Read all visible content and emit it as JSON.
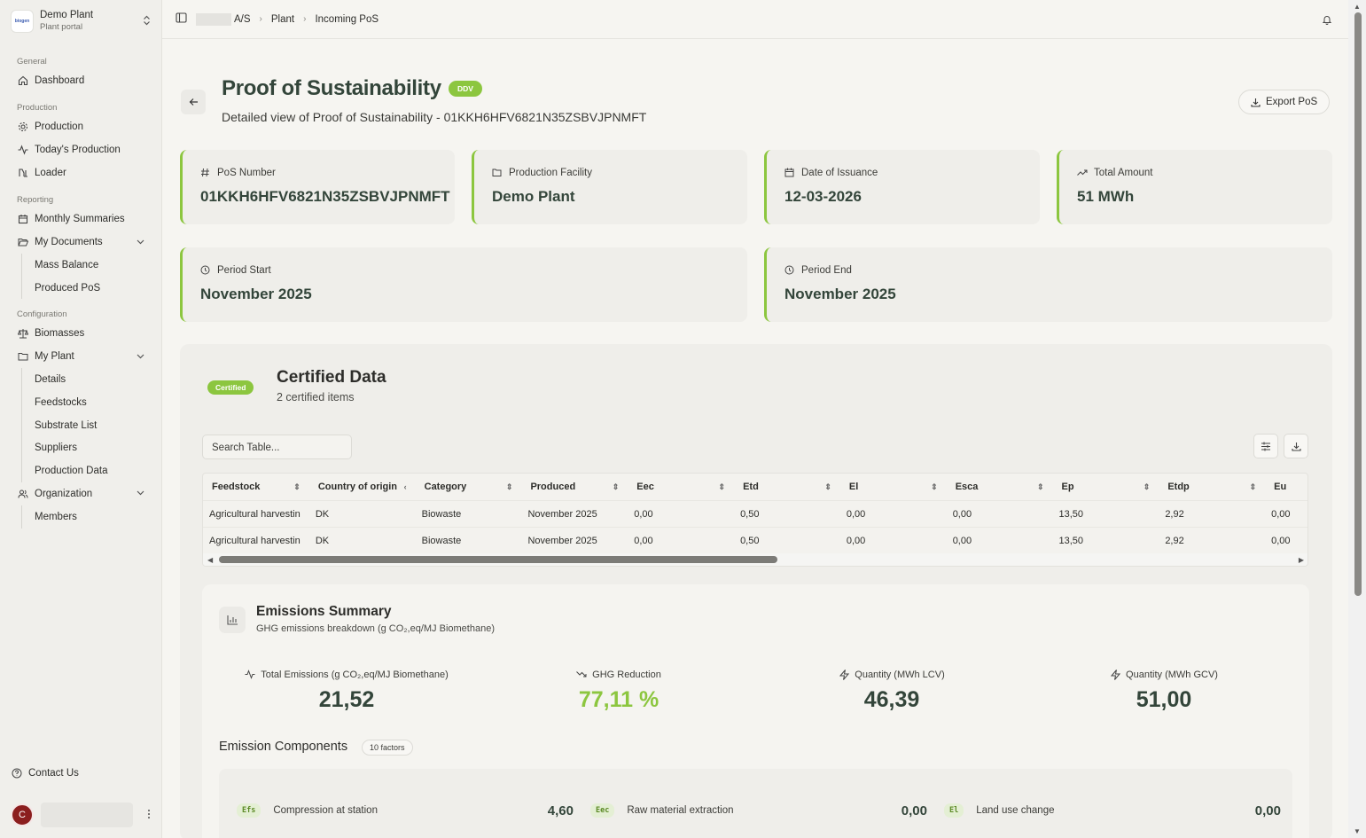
{
  "brand": {
    "name": "Demo Plant",
    "subtitle": "Plant portal",
    "logo_text": "biogen"
  },
  "sidebar": {
    "sections": {
      "general": "General",
      "production": "Production",
      "reporting": "Reporting",
      "configuration": "Configuration"
    },
    "items": {
      "dashboard": "Dashboard",
      "production": "Production",
      "todays_production": "Today's Production",
      "loader": "Loader",
      "monthly_summaries": "Monthly Summaries",
      "my_documents": "My Documents",
      "mass_balance": "Mass Balance",
      "produced_pos": "Produced PoS",
      "biomasses": "Biomasses",
      "my_plant": "My Plant",
      "details": "Details",
      "feedstocks": "Feedstocks",
      "substrate_list": "Substrate List",
      "suppliers": "Suppliers",
      "production_data": "Production Data",
      "organization": "Organization",
      "members": "Members"
    },
    "contact": "Contact Us",
    "user_initial": "C"
  },
  "breadcrumb": {
    "org": "A/S",
    "plant": "Plant",
    "current": "Incoming PoS"
  },
  "page": {
    "title": "Proof of Sustainability",
    "badge": "DDV",
    "subtitle": "Detailed view of Proof of Sustainability - 01KKH6HFV6821N35ZSBVJPNMFT",
    "export_label": "Export PoS"
  },
  "cards": {
    "pos_number": {
      "label": "PoS Number",
      "value": "01KKH6HFV6821N35ZSBVJPNMFT"
    },
    "facility": {
      "label": "Production Facility",
      "value": "Demo Plant"
    },
    "issuance": {
      "label": "Date of Issuance",
      "value": "12-03-2026"
    },
    "total": {
      "label": "Total Amount",
      "value": "51 MWh"
    },
    "period_start": {
      "label": "Period Start",
      "value": "November 2025"
    },
    "period_end": {
      "label": "Period End",
      "value": "November 2025"
    }
  },
  "certified": {
    "badge": "Certified",
    "title": "Certified Data",
    "subtitle": "2 certified items",
    "search_placeholder": "Search Table...",
    "columns": [
      "Feedstock",
      "Country of origin",
      "Category",
      "Produced",
      "Eec",
      "Etd",
      "El",
      "Esca",
      "Ep",
      "Etdp",
      "Eu"
    ],
    "rows": [
      [
        "Agricultural harvestin",
        "DK",
        "Biowaste",
        "November 2025",
        "0,00",
        "0,50",
        "0,00",
        "0,00",
        "13,50",
        "2,92",
        "0,00"
      ],
      [
        "Agricultural harvestin",
        "DK",
        "Biowaste",
        "November 2025",
        "0,00",
        "0,50",
        "0,00",
        "0,00",
        "13,50",
        "2,92",
        "0,00"
      ]
    ]
  },
  "emissions": {
    "title": "Emissions Summary",
    "subtitle": "GHG emissions breakdown (g CO₂,eq/MJ Biomethane)",
    "stats": {
      "total": {
        "label": "Total Emissions (g CO₂,eq/MJ Biomethane)",
        "value": "21,52"
      },
      "reduction": {
        "label": "GHG Reduction",
        "value": "77,11 %"
      },
      "lcv": {
        "label": "Quantity (MWh LCV)",
        "value": "46,39"
      },
      "gcv": {
        "label": "Quantity (MWh GCV)",
        "value": "51,00"
      }
    },
    "components_title": "Emission Components",
    "components_count": "10 factors",
    "components": {
      "efs": {
        "tag": "Efs",
        "name": "Compression at station",
        "value": "4,60"
      },
      "eec": {
        "tag": "Eec",
        "name": "Raw material extraction",
        "value": "0,00"
      },
      "el": {
        "tag": "El",
        "name": "Land use change",
        "value": "0,00"
      }
    }
  }
}
